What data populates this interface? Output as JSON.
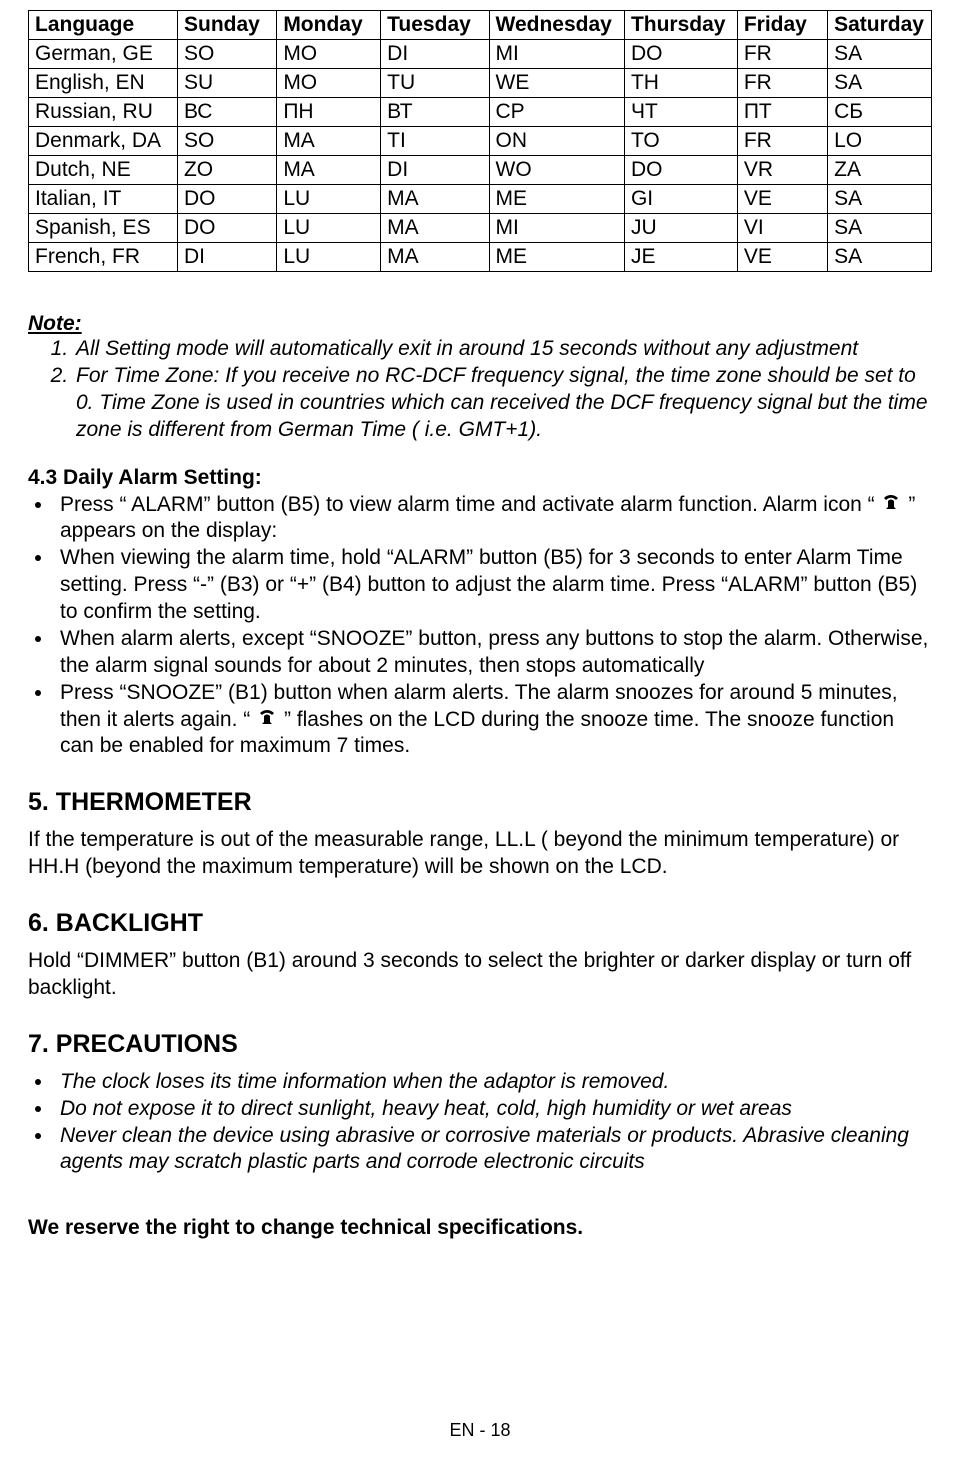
{
  "table": {
    "columns": [
      "Language",
      "Sunday",
      "Monday",
      "Tuesday",
      "Wednesday",
      "Thursday",
      "Friday",
      "Saturday"
    ],
    "rows": [
      [
        "German, GE",
        "SO",
        "MO",
        "DI",
        "MI",
        "DO",
        "FR",
        "SA"
      ],
      [
        "English, EN",
        "SU",
        "MO",
        "TU",
        "WE",
        "TH",
        "FR",
        "SA"
      ],
      [
        "Russian, RU",
        "ВС",
        "ПН",
        "ВТ",
        "СР",
        "ЧТ",
        "ПТ",
        "СБ"
      ],
      [
        "Denmark, DA",
        "SO",
        "MA",
        "TI",
        "ON",
        "TO",
        "FR",
        "LO"
      ],
      [
        "Dutch, NE",
        "ZO",
        "MA",
        "DI",
        "WO",
        "DO",
        "VR",
        "ZA"
      ],
      [
        "Italian, IT",
        "DO",
        "LU",
        "MA",
        "ME",
        "GI",
        "VE",
        "SA"
      ],
      [
        "Spanish, ES",
        "DO",
        "LU",
        "MA",
        "MI",
        "JU",
        "VI",
        "SA"
      ],
      [
        "French, FR",
        "DI",
        "LU",
        "MA",
        "ME",
        "JE",
        "VE",
        "SA"
      ]
    ],
    "col_widths_pct": [
      16.5,
      11.0,
      11.5,
      12.0,
      15.0,
      12.5,
      10.0,
      11.5
    ]
  },
  "note": {
    "heading": "Note:",
    "items": [
      "All Setting mode will automatically exit in around 15 seconds without any adjustment",
      "For Time Zone: If you receive no RC-DCF frequency signal, the time zone should be set to 0. Time Zone is used in countries which can received the DCF frequency signal but the time zone is different from German Time ( i.e. GMT+1)."
    ]
  },
  "alarm": {
    "heading": "4.3 Daily Alarm Setting:",
    "b1_pre": "Press “ ALARM” button (B5) to view alarm time and activate alarm function. Alarm icon “ ",
    "b1_post": " ” appears on the display:",
    "b2": "When viewing the alarm time, hold “ALARM” button (B5) for 3 seconds to enter Alarm Time setting. Press “-” (B3) or “+” (B4) button to adjust the alarm time. Press “ALARM” button (B5) to confirm the setting.",
    "b3": "When alarm alerts, except “SNOOZE” button, press any buttons to stop the alarm. Otherwise, the alarm signal sounds for about 2 minutes, then stops automatically",
    "b4_pre": "Press “SNOOZE” (B1) button when alarm alerts. The alarm snoozes for around 5 minutes, then it alerts again. “ ",
    "b4_post": " ” flashes on the LCD during the snooze time. The snooze function can be enabled for maximum 7 times."
  },
  "thermo": {
    "heading": "5.  THERMOMETER",
    "body": "If the temperature is out of the measurable range, LL.L ( beyond the minimum temperature) or HH.H (beyond the maximum temperature) will be shown on the LCD."
  },
  "backlight": {
    "heading": "6.  BACKLIGHT",
    "body": "Hold “DIMMER” button (B1) around 3 seconds to select the brighter or darker display or turn off backlight."
  },
  "precautions": {
    "heading": "7. PRECAUTIONS",
    "items": [
      "The clock loses its time information when the adaptor is removed.",
      "Do not expose it to direct sunlight, heavy heat, cold, high humidity or wet areas",
      "Never clean the device using abrasive or corrosive materials or products. Abrasive cleaning agents may scratch plastic parts and corrode electronic circuits"
    ]
  },
  "reserve": "We reserve the right to change technical specifications.",
  "footer": "EN - 18",
  "colors": {
    "text": "#000000",
    "background": "#ffffff",
    "border": "#000000"
  },
  "fonts": {
    "body_pt": 21,
    "heading_pt": 25,
    "footer_pt": 18,
    "family": "Arial"
  }
}
